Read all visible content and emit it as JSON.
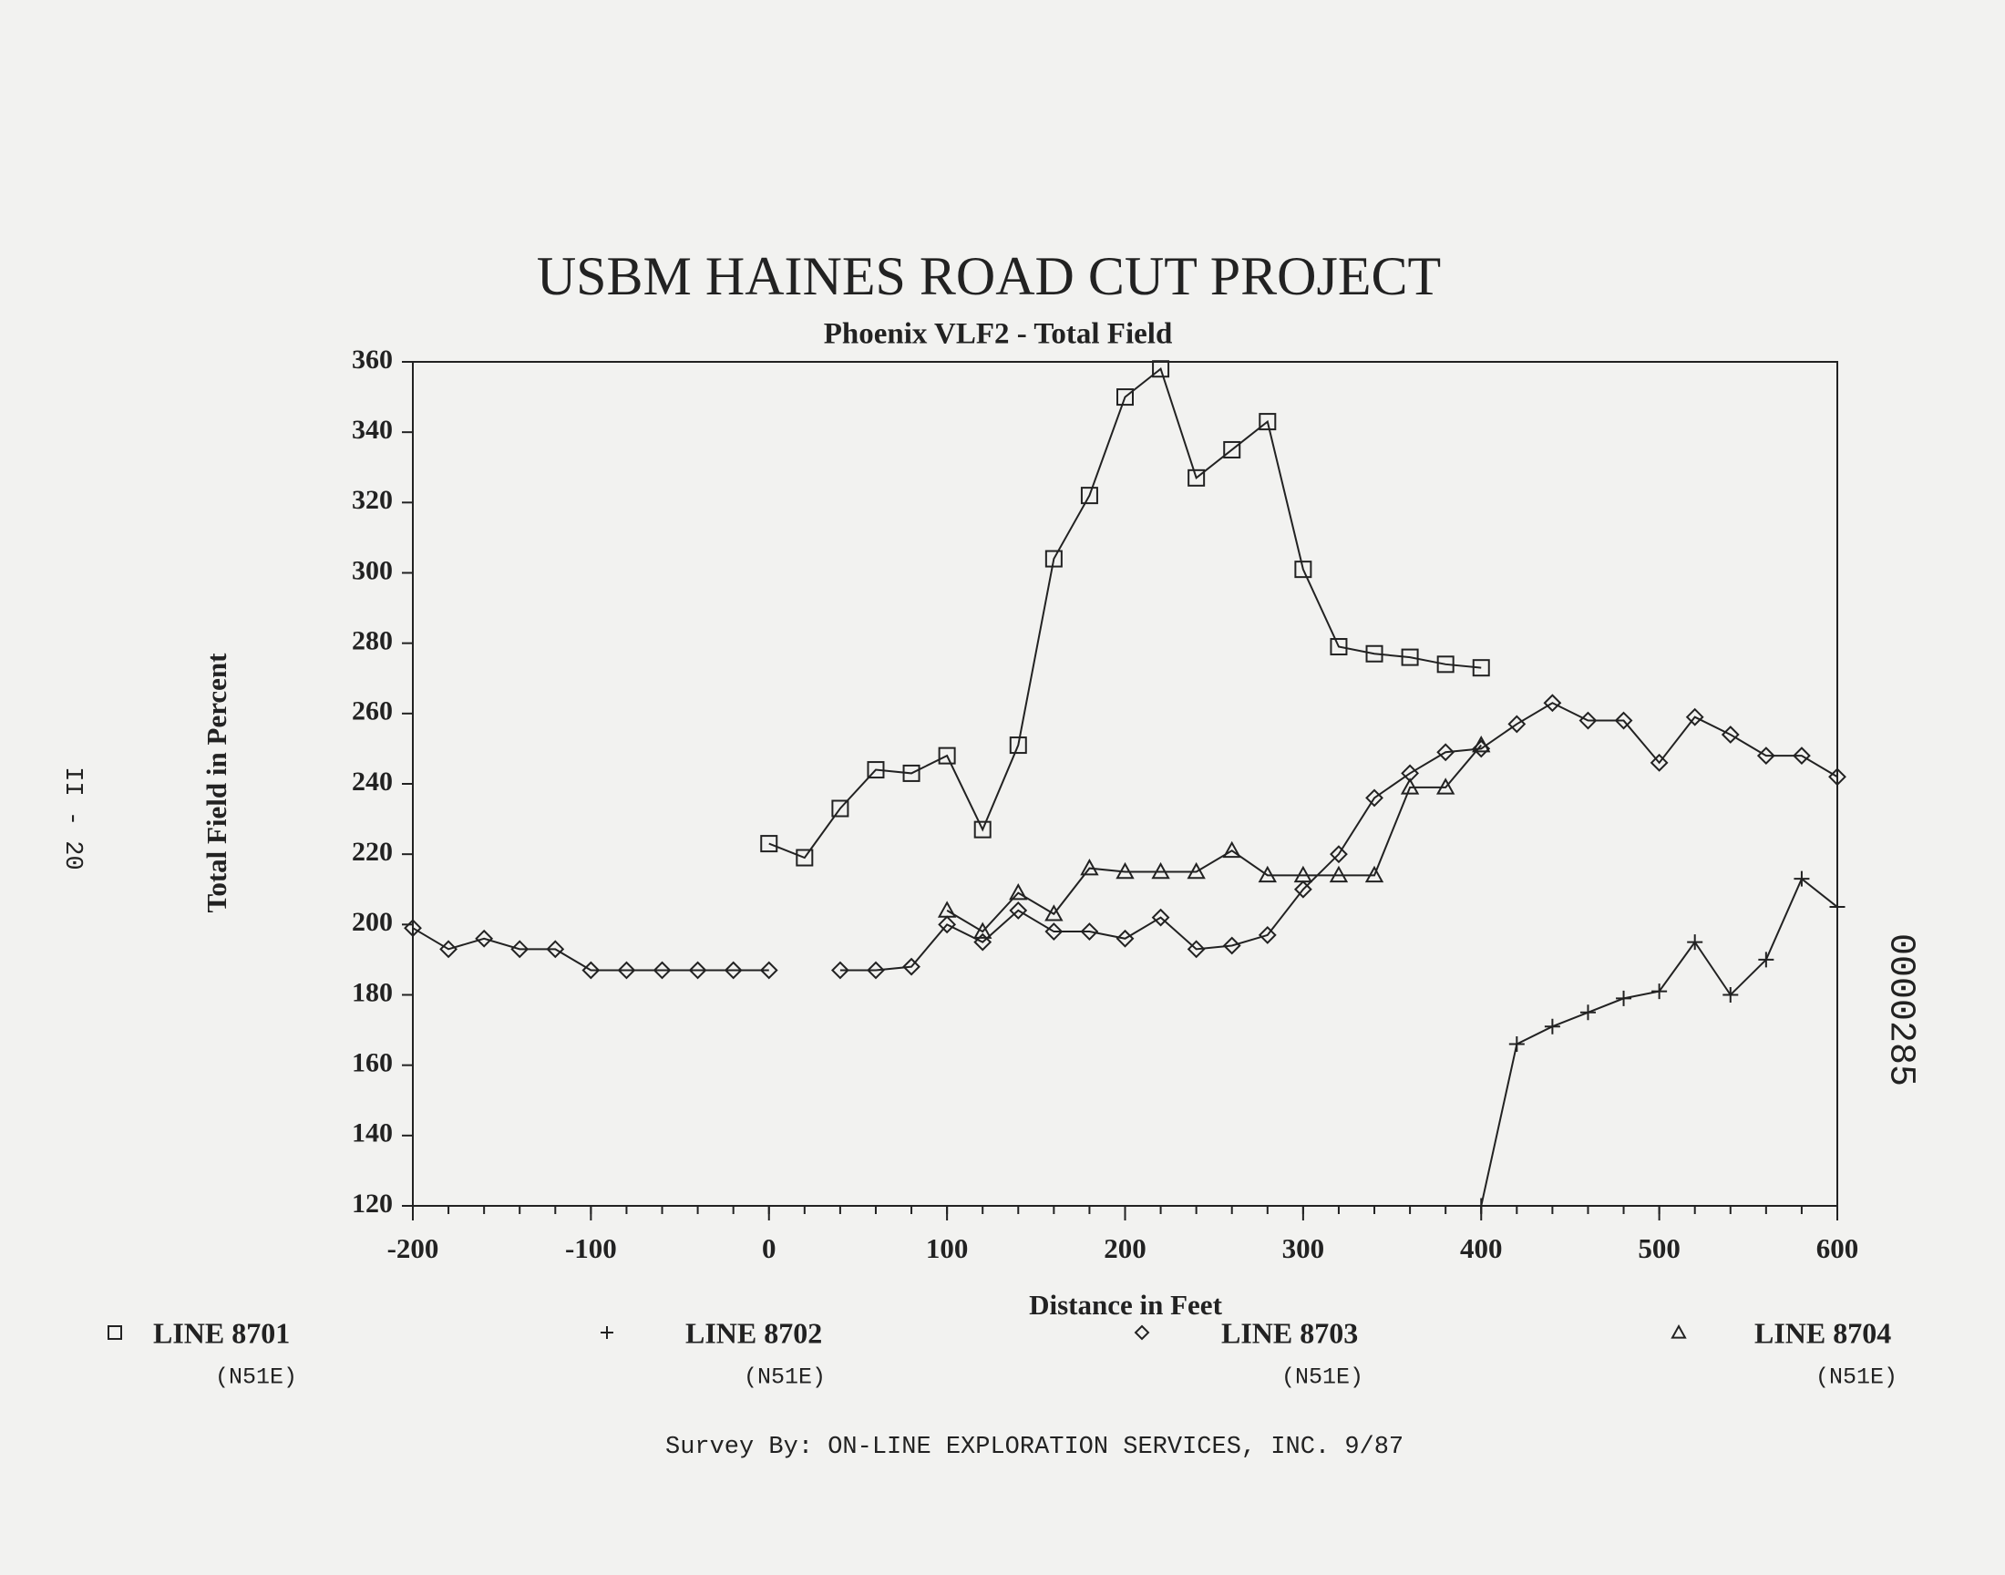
{
  "chart_data": {
    "type": "line",
    "title": "USBM HAINES ROAD CUT PROJECT",
    "subtitle": "Phoenix VLF2 - Total Field",
    "x_label": "Distance in Feet",
    "y_label": "Total Field in Percent",
    "footer": "Survey By:  ON-LINE EXPLORATION SERVICES, INC.  9/87",
    "page_label": "II - 20",
    "stamp": "0000285",
    "x": [
      -200,
      -180,
      -160,
      -140,
      -120,
      -100,
      -80,
      -60,
      -40,
      -20,
      0,
      20,
      40,
      60,
      80,
      100,
      120,
      140,
      160,
      180,
      200,
      220,
      240,
      260,
      280,
      300,
      320,
      340,
      360,
      380,
      400,
      420,
      440,
      460,
      480,
      500,
      520,
      540,
      560,
      580,
      600
    ],
    "xlim": [
      -200,
      600
    ],
    "xticks": [
      -200,
      -100,
      0,
      100,
      200,
      300,
      400,
      500,
      600
    ],
    "ylim": [
      120,
      360
    ],
    "yticks": [
      120,
      140,
      160,
      180,
      200,
      220,
      240,
      260,
      280,
      300,
      320,
      340,
      360
    ],
    "color": "#222222",
    "series": [
      {
        "name": "LINE 8701",
        "note": "(N51E)",
        "marker": "square",
        "values": [
          null,
          null,
          null,
          null,
          null,
          null,
          null,
          null,
          null,
          null,
          223,
          219,
          233,
          244,
          243,
          248,
          227,
          251,
          304,
          322,
          350,
          358,
          327,
          335,
          343,
          301,
          279,
          277,
          276,
          274,
          273,
          null,
          null,
          null,
          null,
          null,
          null,
          null,
          null,
          null,
          null
        ]
      },
      {
        "name": "LINE 8702",
        "note": "(N51E)",
        "marker": "plus",
        "values": [
          null,
          null,
          null,
          null,
          null,
          null,
          null,
          null,
          null,
          null,
          null,
          null,
          null,
          null,
          null,
          null,
          null,
          null,
          null,
          null,
          null,
          null,
          null,
          null,
          null,
          null,
          null,
          null,
          null,
          null,
          120,
          166,
          171,
          175,
          179,
          181,
          195,
          180,
          190,
          213,
          205
        ]
      },
      {
        "name": "LINE 8703",
        "note": "(N51E)",
        "marker": "diamond",
        "values": [
          199,
          193,
          196,
          193,
          193,
          187,
          187,
          187,
          187,
          187,
          187,
          null,
          187,
          187,
          188,
          200,
          195,
          204,
          198,
          198,
          196,
          202,
          193,
          194,
          197,
          210,
          220,
          236,
          243,
          249,
          250,
          257,
          263,
          258,
          258,
          246,
          259,
          254,
          248,
          248,
          242
        ]
      },
      {
        "name": "LINE 8704",
        "note": "(N51E)",
        "marker": "triangle",
        "values": [
          null,
          null,
          null,
          null,
          null,
          null,
          null,
          null,
          null,
          null,
          null,
          null,
          null,
          null,
          null,
          204,
          198,
          209,
          203,
          216,
          215,
          215,
          215,
          221,
          214,
          214,
          214,
          214,
          239,
          239,
          251,
          null,
          null,
          null,
          null,
          null,
          null,
          null,
          null,
          null,
          null
        ]
      }
    ]
  }
}
